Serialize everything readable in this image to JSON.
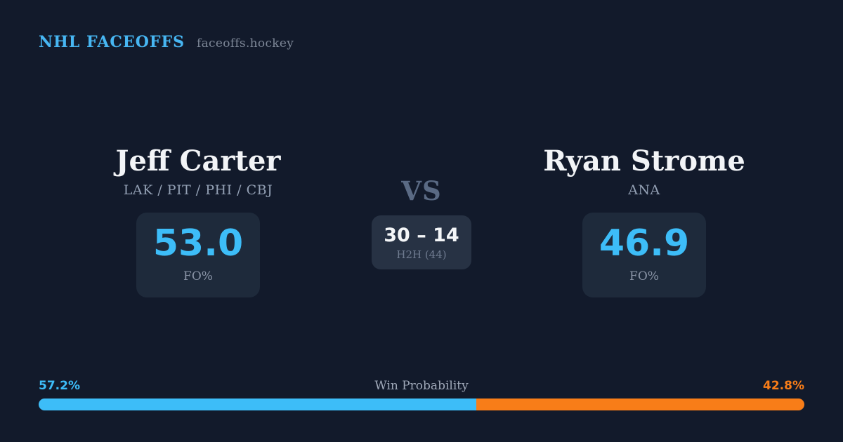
{
  "brand": {
    "title": "NHL FACEOFFS",
    "domain": "faceoffs.hockey"
  },
  "matchup": {
    "player_left": {
      "name": "Jeff Carter",
      "teams": "LAK / PIT / PHI / CBJ",
      "stat_value": "53.0",
      "stat_label": "FO%"
    },
    "versus": {
      "label": "VS",
      "h2h_score": "30 – 14",
      "h2h_label": "H2H (44)"
    },
    "player_right": {
      "name": "Ryan Strome",
      "teams": "ANA",
      "stat_value": "46.9",
      "stat_label": "FO%"
    }
  },
  "win_probability": {
    "label": "Win Probability",
    "left_pct_text": "57.2%",
    "right_pct_text": "42.8%",
    "left_value": 57.2,
    "right_value": 42.8
  },
  "colors": {
    "background": "#121A2B",
    "card": "#1E2A3B",
    "h2h_card": "#273244",
    "accent_blue": "#3DBDF8",
    "accent_orange": "#F87D18",
    "brand_blue": "#47B6F2"
  }
}
